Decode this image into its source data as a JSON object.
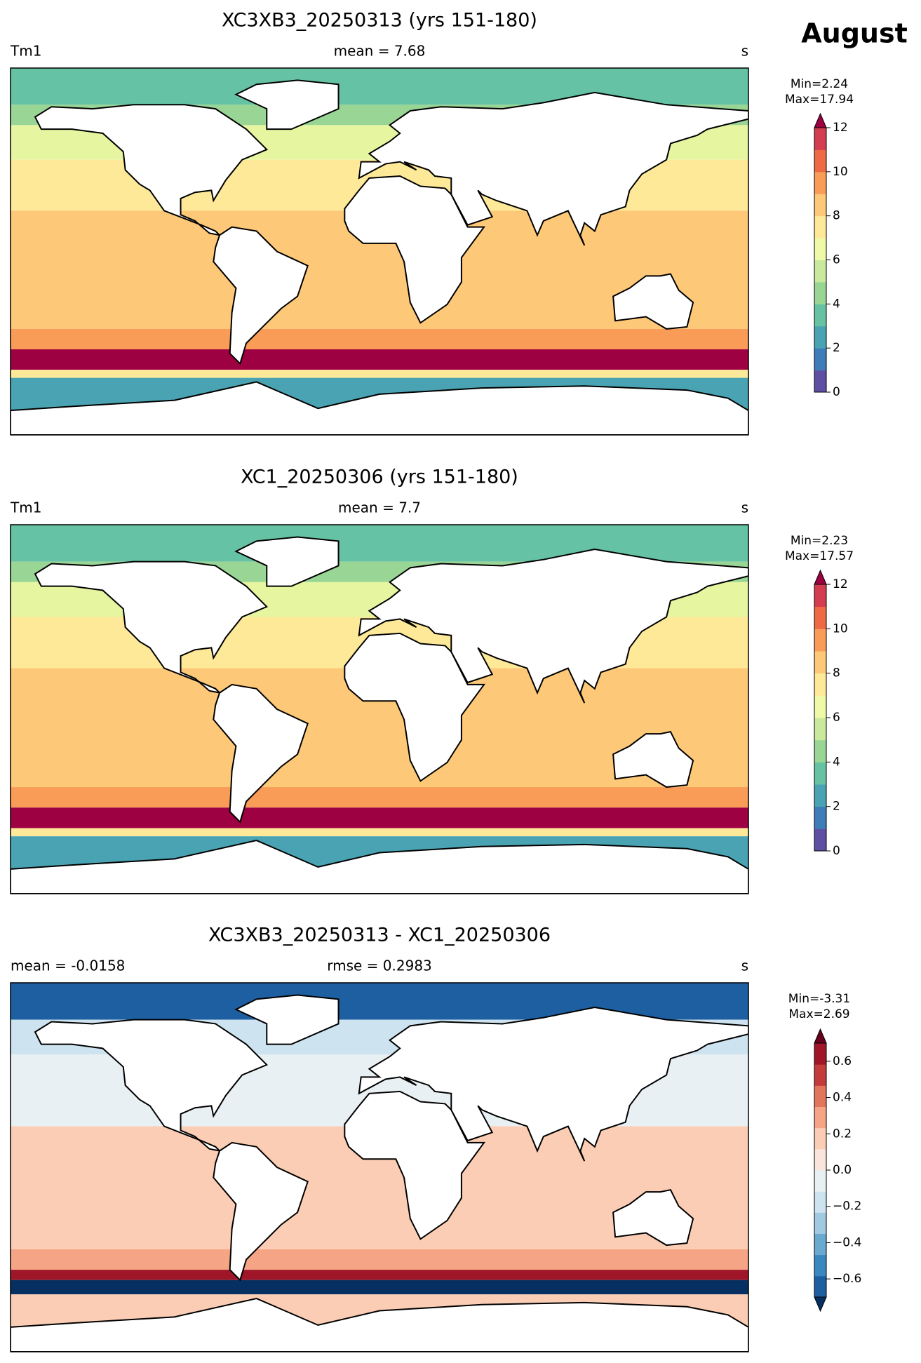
{
  "suptitle": "August",
  "chart_data": [
    {
      "type": "map",
      "title": "XC3XB3_20250313 (yrs 151-180)",
      "left_label": "Tm1",
      "center_label": "mean = 7.68",
      "right_label": "s",
      "min_label": "Min=2.24",
      "max_label": "Max=17.94",
      "cbar_lim": [
        0,
        12
      ],
      "cbar_ticks": [
        0,
        2,
        4,
        6,
        8,
        10,
        12
      ],
      "cbar_extend": "max",
      "cbar_colors": [
        "#5e4fa2",
        "#3f7db8",
        "#4aa3b2",
        "#67c2a4",
        "#99d594",
        "#c9e99d",
        "#f0f9a8",
        "#fee999",
        "#fdc877",
        "#f99c58",
        "#ee6a45",
        "#d43d4f",
        "#9e0142"
      ]
    },
    {
      "type": "map",
      "title": "XC1_20250306 (yrs 151-180)",
      "left_label": "Tm1",
      "center_label": "mean = 7.7",
      "right_label": "s",
      "min_label": "Min=2.23",
      "max_label": "Max=17.57",
      "cbar_lim": [
        0,
        12
      ],
      "cbar_ticks": [
        0,
        2,
        4,
        6,
        8,
        10,
        12
      ],
      "cbar_extend": "max",
      "cbar_colors": [
        "#5e4fa2",
        "#3f7db8",
        "#4aa3b2",
        "#67c2a4",
        "#99d594",
        "#c9e99d",
        "#f0f9a8",
        "#fee999",
        "#fdc877",
        "#f99c58",
        "#ee6a45",
        "#d43d4f",
        "#9e0142"
      ]
    },
    {
      "type": "map",
      "title": "XC3XB3_20250313 - XC1_20250306",
      "left_label": "mean = -0.0158",
      "center_label": "rmse = 0.2983",
      "right_label": "s",
      "min_label": "Min=-3.31",
      "max_label": "Max=2.69",
      "cbar_lim": [
        -0.7,
        0.7
      ],
      "cbar_ticks": [
        {
          "value": -0.6,
          "label": "−0.6"
        },
        {
          "value": -0.4,
          "label": "−0.4"
        },
        {
          "value": -0.2,
          "label": "−0.2"
        },
        {
          "value": 0,
          "label": "0.0"
        },
        0.2,
        0.4,
        0.6
      ],
      "cbar_extend": "both",
      "cbar_colors": [
        "#053061",
        "#1d5fa0",
        "#3a88bf",
        "#6aa9d0",
        "#a1cae2",
        "#cde3ef",
        "#e9f0f4",
        "#f9e5db",
        "#fbcdb4",
        "#f5a585",
        "#e2765d",
        "#c43b3c",
        "#9e1628",
        "#67001f"
      ]
    }
  ]
}
